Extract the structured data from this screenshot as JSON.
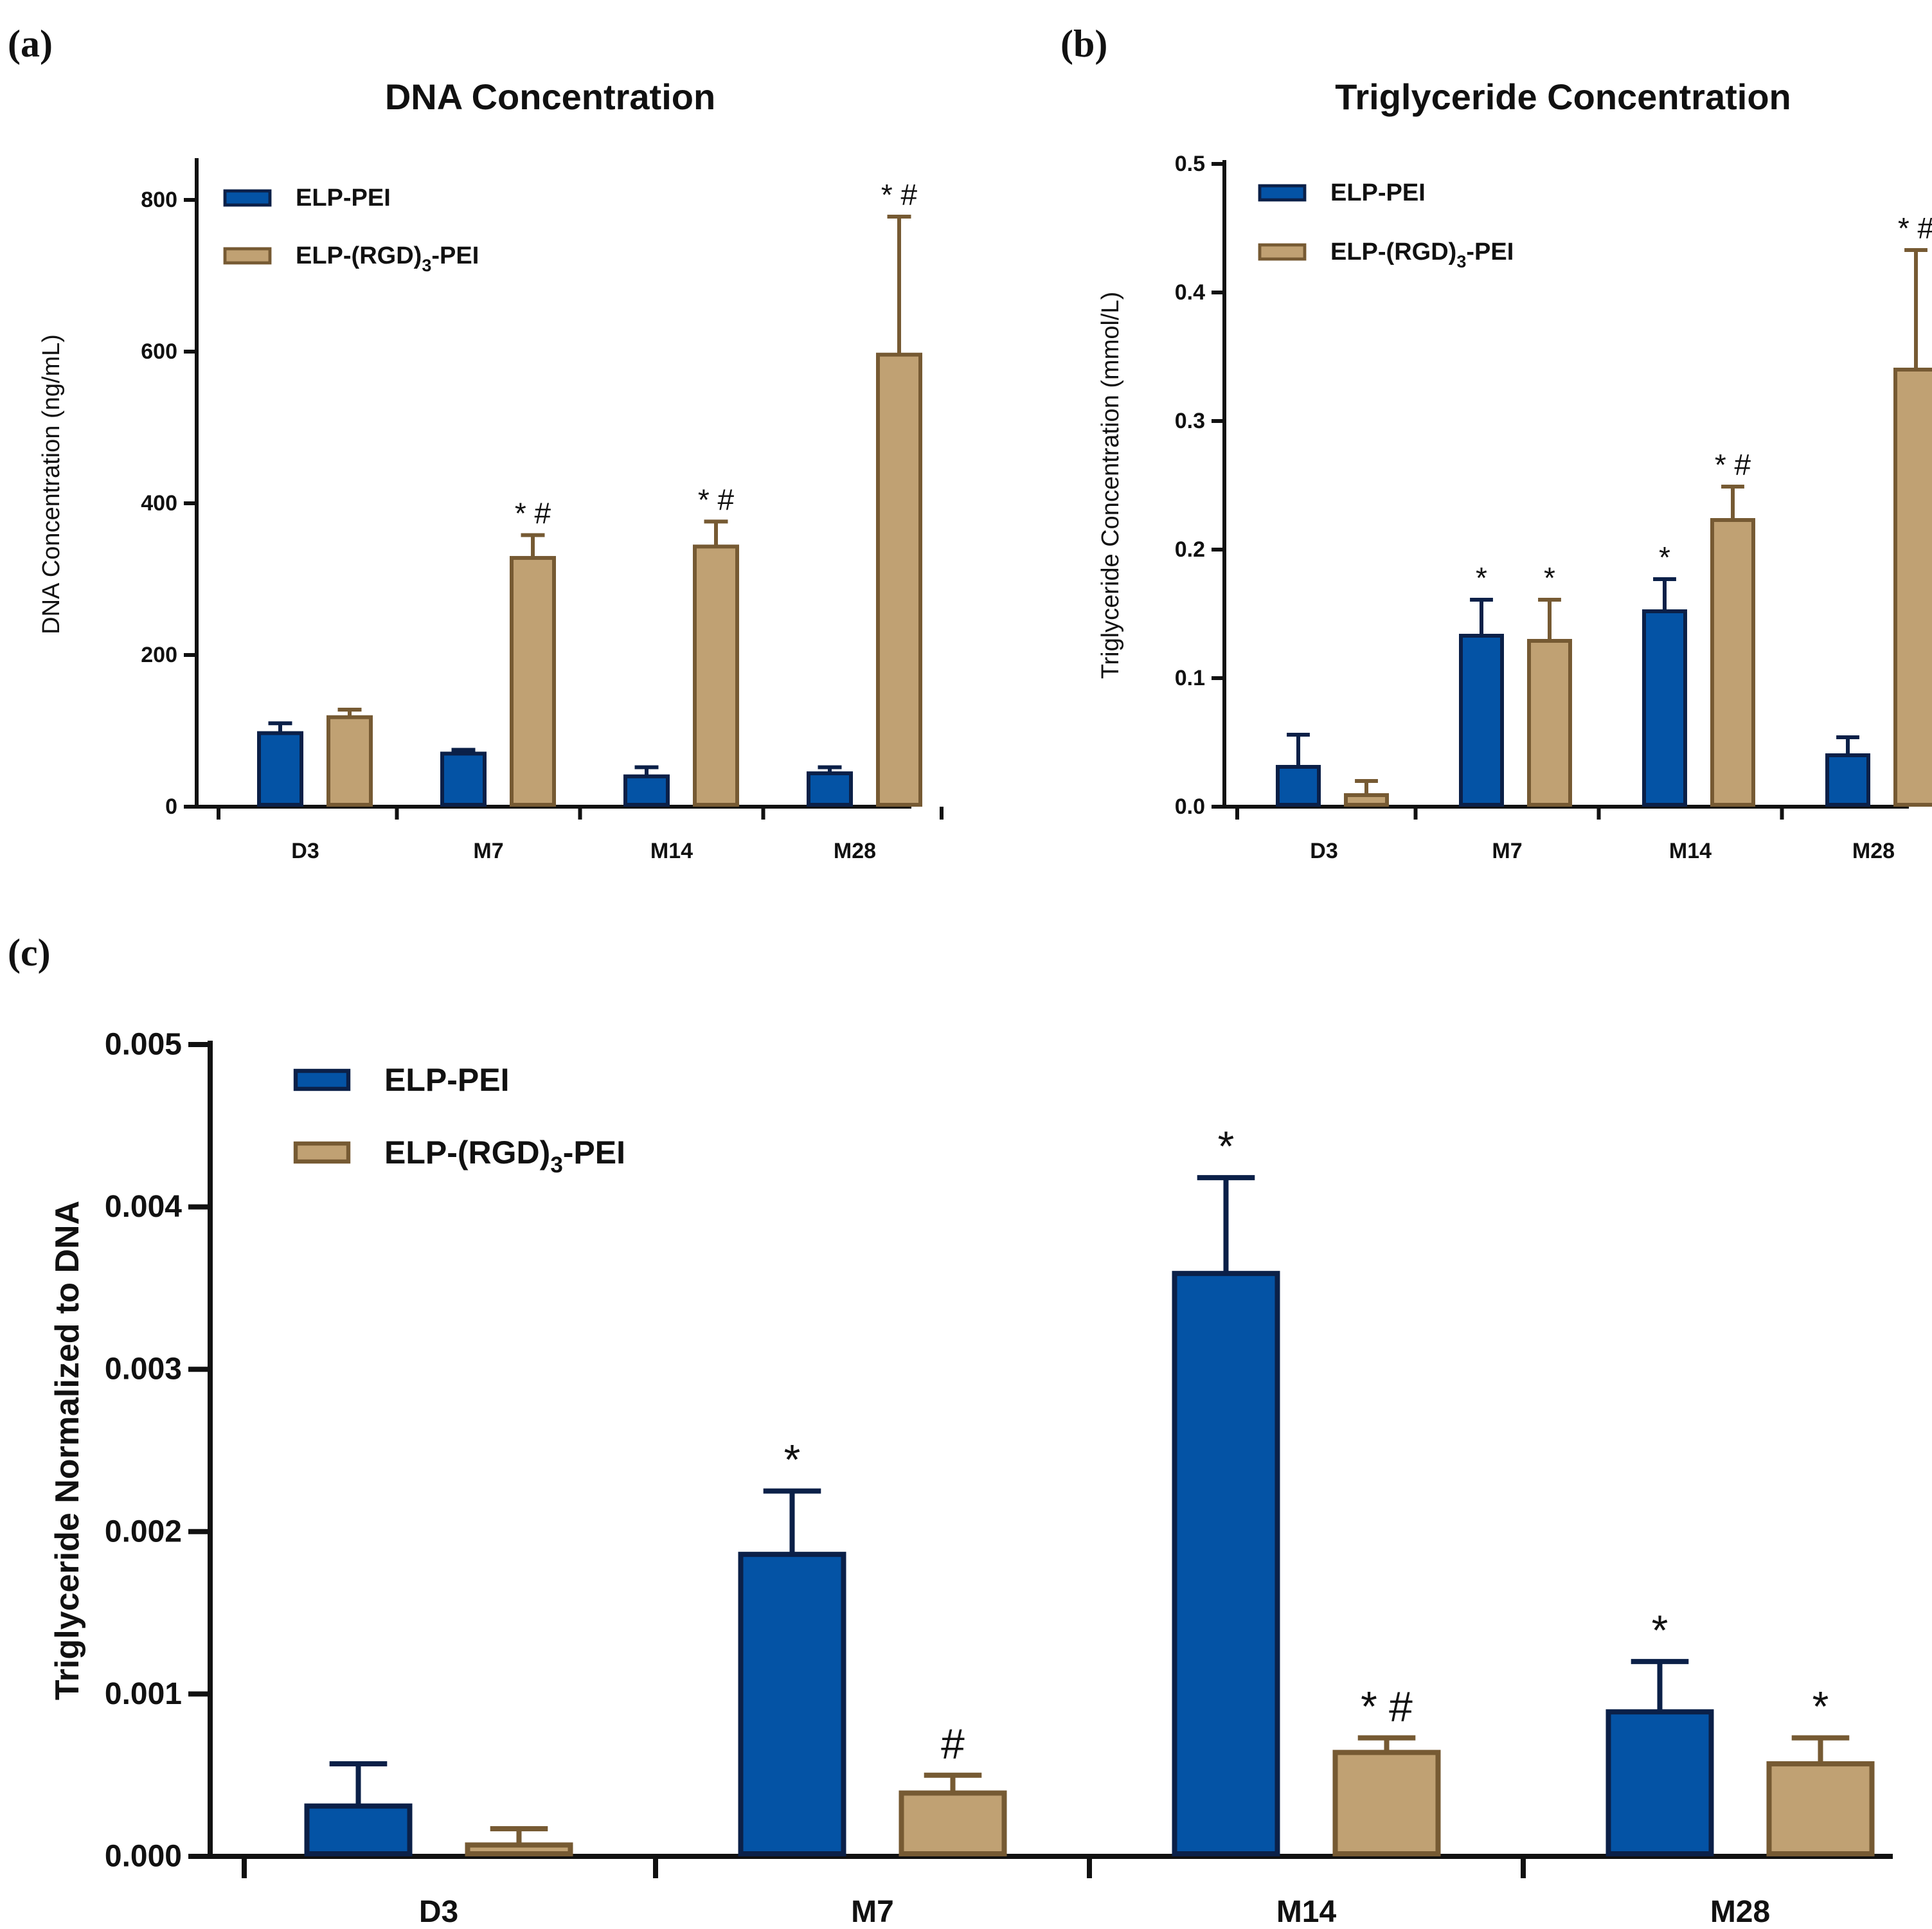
{
  "panel_labels": [
    "(a)",
    "(b)",
    "(c)"
  ],
  "colors": {
    "elp_pei_fill": "#0453a5",
    "elp_pei_edge": "#0b2048",
    "elp_rgd_fill": "#c0a173",
    "elp_rgd_edge": "#765a33",
    "axis": "#111111"
  },
  "legend_labels": {
    "elp_pei": "ELP-PEI",
    "elp_rgd_prefix": "ELP-(RGD)",
    "elp_rgd_sub": "3",
    "elp_rgd_suffix": "-PEI"
  },
  "chart_data": [
    {
      "type": "bar",
      "title": "DNA Concentration",
      "xlabel": "",
      "ylabel": "DNA Concentration (ng/mL)",
      "ylim": [
        0,
        850
      ],
      "yticks": [
        "0",
        "200",
        "400",
        "600",
        "800"
      ],
      "ytick_values": [
        0,
        200,
        400,
        600,
        800
      ],
      "categories": [
        "D3",
        "M7",
        "M14",
        "M28"
      ],
      "legend_position": "top-left",
      "series": [
        {
          "name": "ELP-PEI",
          "values": [
            97,
            70,
            40,
            44
          ],
          "errors": [
            13,
            5,
            12,
            8
          ],
          "annotations": [
            "",
            "",
            "",
            ""
          ]
        },
        {
          "name": "ELP-(RGD)3-PEI",
          "values": [
            118,
            328,
            343,
            596
          ],
          "errors": [
            10,
            30,
            33,
            182
          ],
          "annotations": [
            "",
            "* #",
            "* #",
            "* #"
          ]
        }
      ]
    },
    {
      "type": "bar",
      "title": "Triglyceride Concentration",
      "xlabel": "",
      "ylabel": "Triglyceride Concentration (mmol/L)",
      "ylim": [
        0,
        0.5
      ],
      "yticks": [
        "0.0",
        "0.1",
        "0.2",
        "0.3",
        "0.4",
        "0.5"
      ],
      "ytick_values": [
        0,
        0.1,
        0.2,
        0.3,
        0.4,
        0.5
      ],
      "categories": [
        "D3",
        "M7",
        "M14",
        "M28"
      ],
      "legend_position": "top-left",
      "series": [
        {
          "name": "ELP-PEI",
          "values": [
            0.031,
            0.133,
            0.152,
            0.04
          ],
          "errors": [
            0.025,
            0.028,
            0.025,
            0.014
          ],
          "annotations": [
            "",
            "*",
            "*",
            ""
          ]
        },
        {
          "name": "ELP-(RGD)3-PEI",
          "values": [
            0.009,
            0.129,
            0.223,
            0.34
          ],
          "errors": [
            0.011,
            0.032,
            0.026,
            0.093
          ],
          "annotations": [
            "",
            "*",
            "* #",
            "* #"
          ]
        }
      ]
    },
    {
      "type": "bar",
      "title": "",
      "xlabel": "",
      "ylabel": "Triglyceride Normalized to DNA",
      "ylim": [
        0,
        0.005
      ],
      "yticks": [
        "0.000",
        "0.001",
        "0.002",
        "0.003",
        "0.004",
        "0.005"
      ],
      "ytick_values": [
        0,
        0.001,
        0.002,
        0.003,
        0.004,
        0.005
      ],
      "categories": [
        "D3",
        "M7",
        "M14",
        "M28"
      ],
      "legend_position": "top-left",
      "series": [
        {
          "name": "ELP-PEI",
          "values": [
            0.00031,
            0.00186,
            0.00359,
            0.00089
          ],
          "errors": [
            0.00026,
            0.00039,
            0.00059,
            0.00031
          ],
          "annotations": [
            "",
            "*",
            "*",
            "*"
          ]
        },
        {
          "name": "ELP-(RGD)3-PEI",
          "values": [
            7e-05,
            0.00039,
            0.00064,
            0.00057
          ],
          "errors": [
            0.0001,
            0.00011,
            9e-05,
            0.00016
          ],
          "annotations": [
            "",
            "#",
            "* #",
            "*"
          ]
        }
      ]
    }
  ]
}
